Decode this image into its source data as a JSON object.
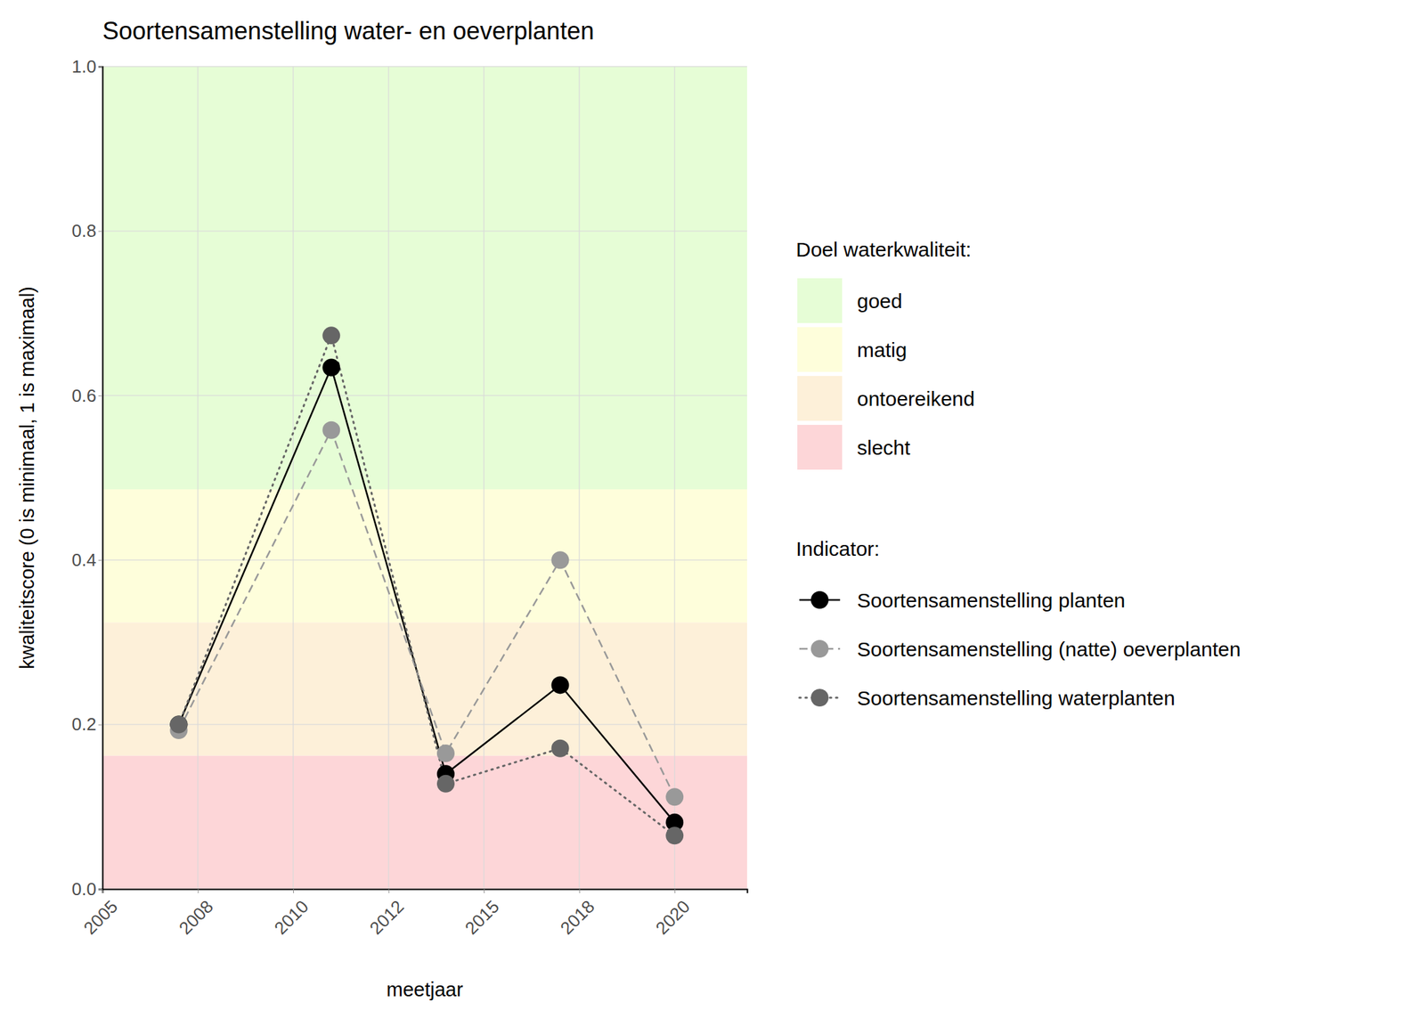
{
  "chart_data": {
    "type": "line",
    "title": "Soortensamenstelling water- en oeverplanten",
    "x_label": "meetjaar",
    "y_label": "kwaliteitscore (0 is minimaal, 1 is maximaal)",
    "x": [
      2007,
      2011,
      2014,
      2017,
      2020
    ],
    "xlim": [
      2005,
      2021.9
    ],
    "xticks": [
      2005,
      {
        "value": 2007.5,
        "label": "2008"
      },
      2010,
      {
        "value": 2012.5,
        "label": "2012"
      },
      2015,
      {
        "value": 2017.5,
        "label": "2018"
      },
      2020
    ],
    "ylim": [
      0,
      1
    ],
    "yticks": [
      {
        "value": 0,
        "label": "0.0"
      },
      0.2,
      0.4,
      0.6,
      0.8,
      {
        "value": 1,
        "label": "1.0"
      }
    ],
    "grid": true,
    "legend": "right",
    "bands_title": "Doel waterkwaliteit:",
    "bands": [
      {
        "name": "goed",
        "color": "#e6fdd6",
        "from": 0.486,
        "to": 1
      },
      {
        "name": "matig",
        "color": "#fefedb",
        "from": 0.324,
        "to": 0.486
      },
      {
        "name": "ontoereikend",
        "color": "#fdf0d9",
        "from": 0.162,
        "to": 0.324
      },
      {
        "name": "slecht",
        "color": "#fdd6d8",
        "from": 0,
        "to": 0.162
      }
    ],
    "legend_title": "Indicator:",
    "series": [
      {
        "name": "Soortensamenstelling planten",
        "color": "#000000",
        "line_style": "solid",
        "marker": "circle",
        "values": [
          0.2,
          0.634,
          0.14,
          0.248,
          0.081
        ]
      },
      {
        "name": "Soortensamenstelling (natte) oeverplanten",
        "color": "#999999",
        "line_style": "dashed",
        "marker": "circle",
        "values": [
          0.193,
          0.558,
          0.165,
          0.4,
          0.112
        ]
      },
      {
        "name": "Soortensamenstelling waterplanten",
        "color": "#666666",
        "line_style": "dotted",
        "marker": "circle",
        "values": [
          0.2,
          0.673,
          0.128,
          0.171,
          0.065
        ]
      }
    ]
  }
}
